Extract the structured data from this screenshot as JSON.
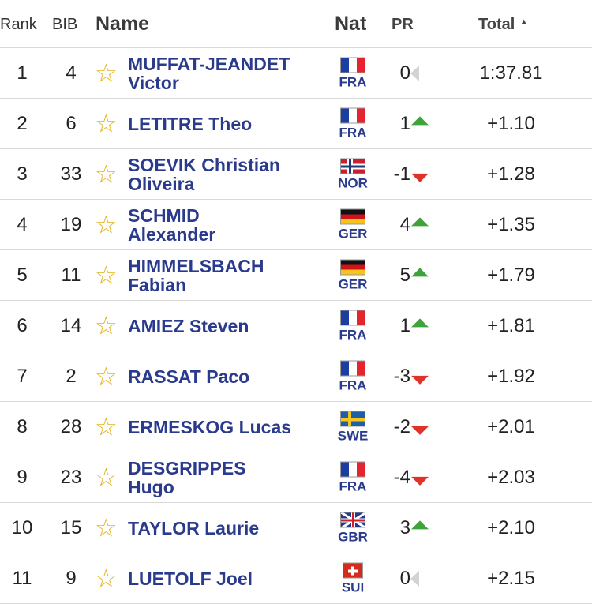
{
  "header": {
    "rank": "Rank",
    "bib": "BIB",
    "name": "Name",
    "nat": "Nat",
    "pr": "PR",
    "total": "Total",
    "sort_icon": "sort-ascending-icon"
  },
  "colors": {
    "name_blue": "#2a3a8c",
    "star": "#e3b21a",
    "up_green": "#3ea43a",
    "down_red": "#e1322a",
    "same_grey": "#d3d3d3"
  },
  "rows": [
    {
      "rank": "1",
      "bib": "4",
      "name_line1": "MUFFAT-JEANDET",
      "name_line2": "Victor",
      "nat": "FRA",
      "pr": "0",
      "pr_dir": "same",
      "total": "1:37.81"
    },
    {
      "rank": "2",
      "bib": "6",
      "name_line1": "LETITRE Theo",
      "name_line2": "",
      "nat": "FRA",
      "pr": "1",
      "pr_dir": "up",
      "total": "+1.10"
    },
    {
      "rank": "3",
      "bib": "33",
      "name_line1": "SOEVIK Christian",
      "name_line2": "Oliveira",
      "nat": "NOR",
      "pr": "-1",
      "pr_dir": "down",
      "total": "+1.28"
    },
    {
      "rank": "4",
      "bib": "19",
      "name_line1": "SCHMID",
      "name_line2": "Alexander",
      "nat": "GER",
      "pr": "4",
      "pr_dir": "up",
      "total": "+1.35"
    },
    {
      "rank": "5",
      "bib": "11",
      "name_line1": "HIMMELSBACH",
      "name_line2": "Fabian",
      "nat": "GER",
      "pr": "5",
      "pr_dir": "up",
      "total": "+1.79"
    },
    {
      "rank": "6",
      "bib": "14",
      "name_line1": "AMIEZ Steven",
      "name_line2": "",
      "nat": "FRA",
      "pr": "1",
      "pr_dir": "up",
      "total": "+1.81"
    },
    {
      "rank": "7",
      "bib": "2",
      "name_line1": "RASSAT Paco",
      "name_line2": "",
      "nat": "FRA",
      "pr": "-3",
      "pr_dir": "down",
      "total": "+1.92"
    },
    {
      "rank": "8",
      "bib": "28",
      "name_line1": "ERMESKOG Lucas",
      "name_line2": "",
      "nat": "SWE",
      "pr": "-2",
      "pr_dir": "down",
      "total": "+2.01"
    },
    {
      "rank": "9",
      "bib": "23",
      "name_line1": "DESGRIPPES",
      "name_line2": "Hugo",
      "nat": "FRA",
      "pr": "-4",
      "pr_dir": "down",
      "total": "+2.03"
    },
    {
      "rank": "10",
      "bib": "15",
      "name_line1": "TAYLOR Laurie",
      "name_line2": "",
      "nat": "GBR",
      "pr": "3",
      "pr_dir": "up",
      "total": "+2.10"
    },
    {
      "rank": "11",
      "bib": "9",
      "name_line1": "LUETOLF Joel",
      "name_line2": "",
      "nat": "SUI",
      "pr": "0",
      "pr_dir": "same",
      "total": "+2.15"
    }
  ]
}
